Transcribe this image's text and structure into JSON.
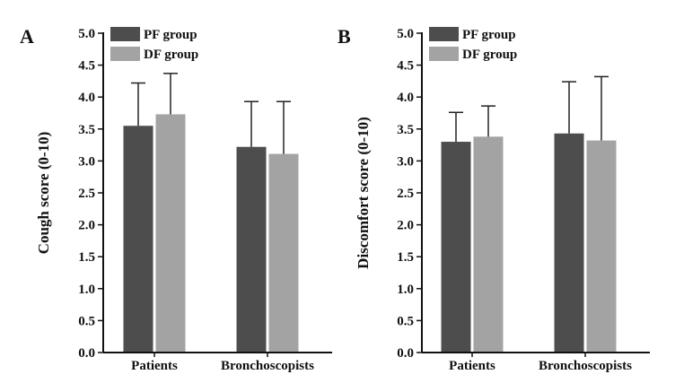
{
  "figure": {
    "colors": {
      "PF group": "#4d4d4d",
      "DF group": "#a3a3a3",
      "axis": "#111111"
    }
  },
  "chart_data": [
    {
      "panel": "A",
      "type": "bar",
      "title": "",
      "xlabel": "",
      "ylabel": "Cough score (0-10)",
      "ylim": [
        0,
        5.0
      ],
      "yticks": [
        "0.0",
        "0.5",
        "1.0",
        "1.5",
        "2.0",
        "2.5",
        "3.0",
        "3.5",
        "4.0",
        "4.5",
        "5.0"
      ],
      "categories": [
        "Patients",
        "Bronchoscopists"
      ],
      "series": [
        {
          "name": "PF group",
          "values": [
            3.55,
            3.22
          ],
          "errors": [
            0.67,
            0.71
          ]
        },
        {
          "name": "DF group",
          "values": [
            3.73,
            3.11
          ],
          "errors": [
            0.64,
            0.82
          ]
        }
      ],
      "grid": false,
      "legend": "top-left"
    },
    {
      "panel": "B",
      "type": "bar",
      "title": "",
      "xlabel": "",
      "ylabel": "Discomfort score (0-10)",
      "ylim": [
        0,
        5.0
      ],
      "yticks": [
        "0.0",
        "0.5",
        "1.0",
        "1.5",
        "2.0",
        "2.5",
        "3.0",
        "3.5",
        "4.0",
        "4.5",
        "5.0"
      ],
      "categories": [
        "Patients",
        "Bronchoscopists"
      ],
      "series": [
        {
          "name": "PF group",
          "values": [
            3.3,
            3.43
          ],
          "errors": [
            0.46,
            0.81
          ]
        },
        {
          "name": "DF group",
          "values": [
            3.38,
            3.32
          ],
          "errors": [
            0.48,
            1.0
          ]
        }
      ],
      "grid": false,
      "legend": "top-left"
    }
  ]
}
